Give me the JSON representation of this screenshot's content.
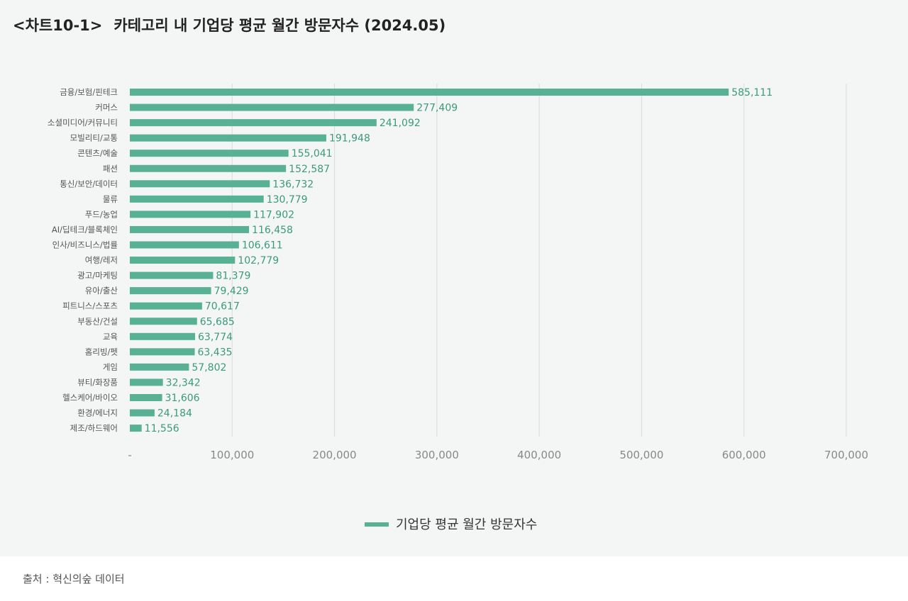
{
  "header": {
    "chart_tag": "<차트10-1>",
    "title": "카테고리 내 기업당 평균 월간 방문자수 (2024.05)"
  },
  "source_note": "출처 : 혁신의숲 데이터",
  "colors": {
    "bar": "#58b095",
    "value_label": "#3a9a7a",
    "grid": "#d9dcdb",
    "panel_bg": "#f4f6f5"
  },
  "chart_data": {
    "type": "bar",
    "orientation": "horizontal",
    "categories": [
      "금융/보험/핀테크",
      "커머스",
      "소셜미디어/커뮤니티",
      "모빌리티/교통",
      "콘텐츠/예술",
      "패션",
      "통신/보안/데이터",
      "물류",
      "푸드/농업",
      "AI/딥테크/블록체인",
      "인사/비즈니스/법률",
      "여행/레저",
      "광고/마케팅",
      "유아/출산",
      "피트니스/스포츠",
      "부동산/건설",
      "교육",
      "홈리빙/펫",
      "게임",
      "뷰티/화장품",
      "헬스케어/바이오",
      "환경/에너지",
      "제조/하드웨어"
    ],
    "series": [
      {
        "name": "기업당 평균 월간 방문자수",
        "values": [
          585111,
          277409,
          241092,
          191948,
          155041,
          152587,
          136732,
          130779,
          117902,
          116458,
          106611,
          102779,
          81379,
          79429,
          70617,
          65685,
          63774,
          63435,
          57802,
          32342,
          31606,
          24184,
          11556
        ],
        "value_labels": [
          "585,111",
          "277,409",
          "241,092",
          "191,948",
          "155,041",
          "152,587",
          "136,732",
          "130,779",
          "117,902",
          "116,458",
          "106,611",
          "102,779",
          "81,379",
          "79,429",
          "70,617",
          "65,685",
          "63,774",
          "63,435",
          "57,802",
          "32,342",
          "31,606",
          "24,184",
          "11,556"
        ]
      }
    ],
    "xlim": [
      0,
      700000
    ],
    "x_ticks": [
      0,
      100000,
      200000,
      300000,
      400000,
      500000,
      600000,
      700000
    ],
    "x_tick_labels": [
      "-",
      "100,000",
      "200,000",
      "300,000",
      "400,000",
      "500,000",
      "600,000",
      "700,000"
    ],
    "xlabel": "",
    "ylabel": "",
    "grid": "vertical",
    "legend_position": "bottom-center"
  }
}
